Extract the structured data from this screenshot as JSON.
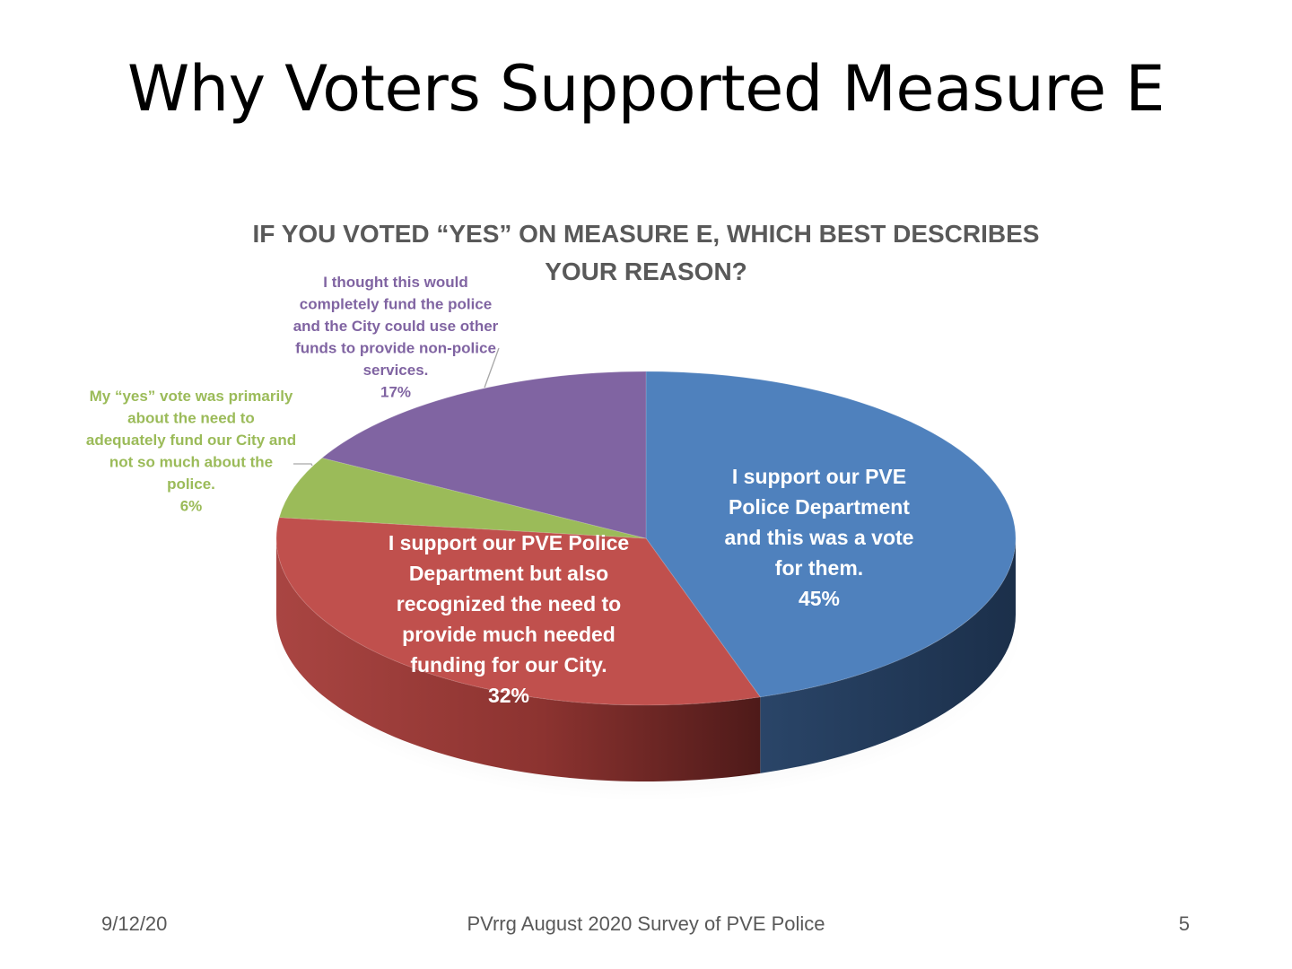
{
  "slide": {
    "title": "Why Voters Supported Measure E",
    "footer_date": "9/12/20",
    "footer_source": "PVrrg August 2020 Survey of PVE Police",
    "page_number": "5"
  },
  "colors": {
    "blue": "#4F81BD",
    "red": "#C0504D",
    "green": "#9BBB59",
    "purple": "#8064A2",
    "title_gray": "#595959"
  },
  "chart_data": {
    "type": "pie",
    "style": "3d",
    "title": "IF YOU VOTED “YES” ON MEASURE E, WHICH BEST DESCRIBES YOUR REASON?",
    "slices": [
      {
        "label_lines": [
          "I support our PVE",
          "Police Department",
          "and this was a vote",
          "for them."
        ],
        "percent_label": "45%",
        "value": 45,
        "color": "#4F81BD"
      },
      {
        "label_lines": [
          "I support our PVE Police",
          "Department but also",
          "recognized the need to",
          "provide much needed",
          "funding for our City."
        ],
        "percent_label": "32%",
        "value": 32,
        "color": "#C0504D"
      },
      {
        "label_lines": [
          "My “yes” vote was primarily",
          "about the need to",
          "adequately fund our City and",
          "not so much about the",
          "police."
        ],
        "percent_label": "6%",
        "value": 6,
        "color": "#9BBB59"
      },
      {
        "label_lines": [
          "I thought this would",
          "completely fund the police",
          "and the City could use other",
          "funds to provide non-police",
          "services."
        ],
        "percent_label": "17%",
        "value": 17,
        "color": "#8064A2"
      }
    ]
  }
}
